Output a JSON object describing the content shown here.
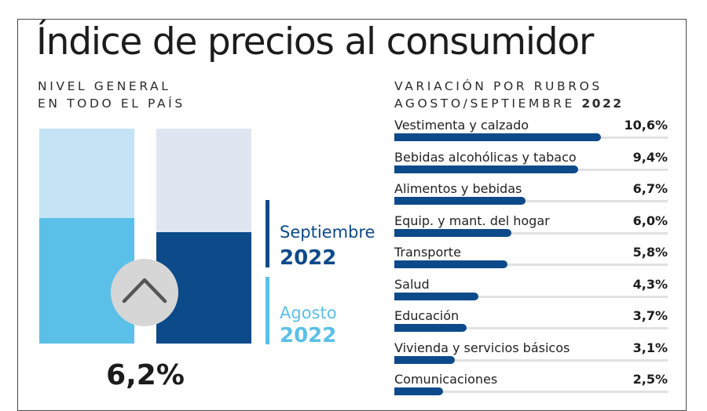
{
  "title": "Índice de precios al consumidor",
  "left": {
    "subtitle_line1": "NIVEL GENERAL",
    "subtitle_line2": "EN TODO EL PAÍS",
    "highlight_value": "6,2%",
    "legend": [
      {
        "name": "Septiembre",
        "year": "2022",
        "color": "#0d4a8a"
      },
      {
        "name": "Agosto",
        "year": "2022",
        "color": "#5bc0e8"
      }
    ],
    "icon": "chevron-up-icon"
  },
  "right": {
    "subtitle_line1": "VARIACIÓN POR RUBROS",
    "subtitle_line2": "AGOSTO/SEPTIEMBRE",
    "subtitle_year": "2022"
  },
  "chart_data": [
    {
      "type": "bar",
      "orientation": "vertical",
      "categories": [
        "Agosto 2022",
        "Septiembre 2022"
      ],
      "values": [
        7.0,
        6.2
      ],
      "colors": {
        "fill": [
          "#5bc0e8",
          "#0d4a8a"
        ],
        "background": [
          "#c4e4f5",
          "#dfe6f1"
        ]
      },
      "ylim": [
        0,
        12
      ]
    },
    {
      "type": "bar",
      "orientation": "horizontal",
      "categories": [
        "Vestimenta y calzado",
        "Bebidas alcohólicas y tabaco",
        "Alimentos y bebidas",
        "Equip. y mant. del hogar",
        "Transporte",
        "Salud",
        "Educación",
        "Vivienda y servicios básicos",
        "Comunicaciones"
      ],
      "values": [
        10.6,
        9.4,
        6.7,
        6.0,
        5.8,
        4.3,
        3.7,
        3.1,
        2.5
      ],
      "labels": [
        "10,6%",
        "9,4%",
        "6,7%",
        "6,0%",
        "5,8%",
        "4,3%",
        "3,7%",
        "3,1%",
        "2,5%"
      ],
      "xlim": [
        0,
        14
      ],
      "color": "#0d4a8a"
    }
  ]
}
